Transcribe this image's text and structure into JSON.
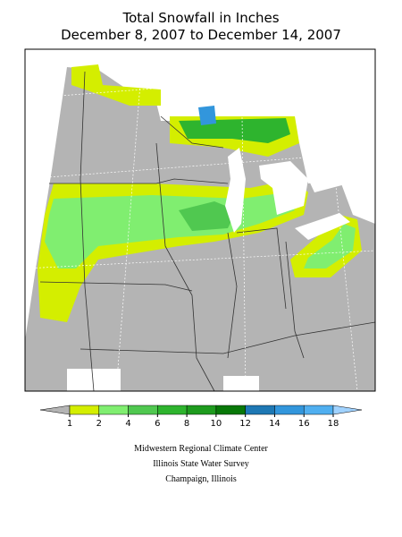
{
  "title": [
    "Total Snowfall in Inches",
    "December 8, 2007 to December 14, 2007"
  ],
  "legend": {
    "ticks": [
      1,
      2,
      4,
      6,
      8,
      10,
      12,
      14,
      16,
      18
    ],
    "colors": [
      "#b4b4b4",
      "#d4ee00",
      "#80ee70",
      "#50c850",
      "#2eb42e",
      "#1e9b1e",
      "#087808",
      "#1e78b4",
      "#3296dc",
      "#50aff0",
      "#a0d2ff"
    ]
  },
  "credits": [
    "Midwestern Regional Climate Center",
    "Illinois State Water Survey",
    "Champaign, Illinois"
  ]
}
